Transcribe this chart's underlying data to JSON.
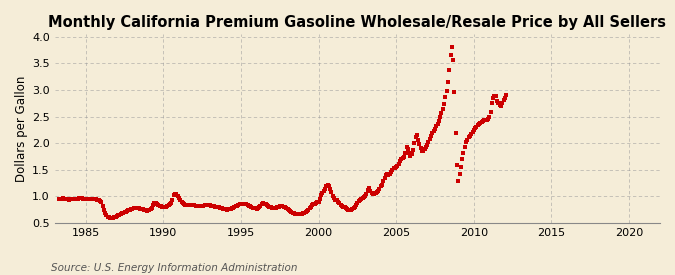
{
  "title": "Monthly California Premium Gasoline Wholesale/Resale Price by All Sellers",
  "ylabel": "Dollars per Gallon",
  "source": "Source: U.S. Energy Information Administration",
  "xlim": [
    1983.0,
    2022.0
  ],
  "ylim": [
    0.5,
    4.05
  ],
  "xticks": [
    1985,
    1990,
    1995,
    2000,
    2005,
    2010,
    2015,
    2020
  ],
  "yticks": [
    0.5,
    1.0,
    1.5,
    2.0,
    2.5,
    3.0,
    3.5,
    4.0
  ],
  "dot_color": "#cc0000",
  "background_color": "#f5edd8",
  "grid_color": "#999999",
  "title_fontsize": 10.5,
  "ylabel_fontsize": 8.5,
  "source_fontsize": 7.5,
  "data": [
    [
      1983.25,
      0.945
    ],
    [
      1983.33,
      0.95
    ],
    [
      1983.42,
      0.96
    ],
    [
      1983.5,
      0.965
    ],
    [
      1983.58,
      0.96
    ],
    [
      1983.67,
      0.955
    ],
    [
      1983.75,
      0.95
    ],
    [
      1983.83,
      0.945
    ],
    [
      1983.92,
      0.94
    ],
    [
      1984.0,
      0.945
    ],
    [
      1984.08,
      0.948
    ],
    [
      1984.17,
      0.952
    ],
    [
      1984.25,
      0.955
    ],
    [
      1984.33,
      0.96
    ],
    [
      1984.42,
      0.958
    ],
    [
      1984.5,
      0.955
    ],
    [
      1984.58,
      0.965
    ],
    [
      1984.67,
      0.968
    ],
    [
      1984.75,
      0.965
    ],
    [
      1984.83,
      0.96
    ],
    [
      1984.92,
      0.955
    ],
    [
      1985.0,
      0.95
    ],
    [
      1985.08,
      0.945
    ],
    [
      1985.17,
      0.948
    ],
    [
      1985.25,
      0.952
    ],
    [
      1985.33,
      0.955
    ],
    [
      1985.42,
      0.958
    ],
    [
      1985.5,
      0.96
    ],
    [
      1985.58,
      0.955
    ],
    [
      1985.67,
      0.948
    ],
    [
      1985.75,
      0.938
    ],
    [
      1985.83,
      0.925
    ],
    [
      1985.92,
      0.912
    ],
    [
      1986.0,
      0.895
    ],
    [
      1986.08,
      0.83
    ],
    [
      1986.17,
      0.748
    ],
    [
      1986.25,
      0.685
    ],
    [
      1986.33,
      0.648
    ],
    [
      1986.42,
      0.622
    ],
    [
      1986.5,
      0.608
    ],
    [
      1986.58,
      0.6
    ],
    [
      1986.67,
      0.598
    ],
    [
      1986.75,
      0.6
    ],
    [
      1986.83,
      0.608
    ],
    [
      1986.92,
      0.618
    ],
    [
      1987.0,
      0.632
    ],
    [
      1987.08,
      0.648
    ],
    [
      1987.17,
      0.66
    ],
    [
      1987.25,
      0.672
    ],
    [
      1987.33,
      0.682
    ],
    [
      1987.42,
      0.69
    ],
    [
      1987.5,
      0.7
    ],
    [
      1987.58,
      0.715
    ],
    [
      1987.67,
      0.728
    ],
    [
      1987.75,
      0.74
    ],
    [
      1987.83,
      0.752
    ],
    [
      1987.92,
      0.762
    ],
    [
      1988.0,
      0.772
    ],
    [
      1988.08,
      0.78
    ],
    [
      1988.17,
      0.785
    ],
    [
      1988.25,
      0.785
    ],
    [
      1988.33,
      0.782
    ],
    [
      1988.42,
      0.778
    ],
    [
      1988.5,
      0.772
    ],
    [
      1988.58,
      0.765
    ],
    [
      1988.67,
      0.758
    ],
    [
      1988.75,
      0.75
    ],
    [
      1988.83,
      0.742
    ],
    [
      1988.92,
      0.735
    ],
    [
      1989.0,
      0.738
    ],
    [
      1989.08,
      0.748
    ],
    [
      1989.17,
      0.762
    ],
    [
      1989.25,
      0.78
    ],
    [
      1989.33,
      0.842
    ],
    [
      1989.42,
      0.88
    ],
    [
      1989.5,
      0.875
    ],
    [
      1989.58,
      0.862
    ],
    [
      1989.67,
      0.845
    ],
    [
      1989.75,
      0.83
    ],
    [
      1989.83,
      0.818
    ],
    [
      1989.92,
      0.808
    ],
    [
      1990.0,
      0.8
    ],
    [
      1990.08,
      0.802
    ],
    [
      1990.17,
      0.808
    ],
    [
      1990.25,
      0.818
    ],
    [
      1990.33,
      0.832
    ],
    [
      1990.42,
      0.85
    ],
    [
      1990.5,
      0.875
    ],
    [
      1990.58,
      0.942
    ],
    [
      1990.67,
      1.025
    ],
    [
      1990.75,
      1.055
    ],
    [
      1990.83,
      1.038
    ],
    [
      1990.92,
      1.005
    ],
    [
      1991.0,
      0.968
    ],
    [
      1991.08,
      0.928
    ],
    [
      1991.17,
      0.898
    ],
    [
      1991.25,
      0.872
    ],
    [
      1991.33,
      0.855
    ],
    [
      1991.42,
      0.845
    ],
    [
      1991.5,
      0.842
    ],
    [
      1991.58,
      0.845
    ],
    [
      1991.67,
      0.848
    ],
    [
      1991.75,
      0.848
    ],
    [
      1991.83,
      0.845
    ],
    [
      1991.92,
      0.84
    ],
    [
      1992.0,
      0.835
    ],
    [
      1992.08,
      0.83
    ],
    [
      1992.17,
      0.825
    ],
    [
      1992.25,
      0.822
    ],
    [
      1992.33,
      0.82
    ],
    [
      1992.42,
      0.82
    ],
    [
      1992.5,
      0.822
    ],
    [
      1992.58,
      0.828
    ],
    [
      1992.67,
      0.835
    ],
    [
      1992.75,
      0.84
    ],
    [
      1992.83,
      0.842
    ],
    [
      1992.92,
      0.84
    ],
    [
      1993.0,
      0.835
    ],
    [
      1993.08,
      0.828
    ],
    [
      1993.17,
      0.82
    ],
    [
      1993.25,
      0.815
    ],
    [
      1993.33,
      0.81
    ],
    [
      1993.42,
      0.808
    ],
    [
      1993.5,
      0.805
    ],
    [
      1993.58,
      0.8
    ],
    [
      1993.67,
      0.792
    ],
    [
      1993.75,
      0.782
    ],
    [
      1993.83,
      0.772
    ],
    [
      1993.92,
      0.765
    ],
    [
      1994.0,
      0.758
    ],
    [
      1994.08,
      0.755
    ],
    [
      1994.17,
      0.758
    ],
    [
      1994.25,
      0.765
    ],
    [
      1994.33,
      0.772
    ],
    [
      1994.42,
      0.782
    ],
    [
      1994.5,
      0.792
    ],
    [
      1994.58,
      0.802
    ],
    [
      1994.67,
      0.815
    ],
    [
      1994.75,
      0.828
    ],
    [
      1994.83,
      0.84
    ],
    [
      1994.92,
      0.85
    ],
    [
      1995.0,
      0.858
    ],
    [
      1995.08,
      0.862
    ],
    [
      1995.17,
      0.862
    ],
    [
      1995.25,
      0.858
    ],
    [
      1995.33,
      0.85
    ],
    [
      1995.42,
      0.84
    ],
    [
      1995.5,
      0.828
    ],
    [
      1995.58,
      0.815
    ],
    [
      1995.67,
      0.802
    ],
    [
      1995.75,
      0.792
    ],
    [
      1995.83,
      0.782
    ],
    [
      1995.92,
      0.775
    ],
    [
      1996.0,
      0.772
    ],
    [
      1996.08,
      0.778
    ],
    [
      1996.17,
      0.798
    ],
    [
      1996.25,
      0.828
    ],
    [
      1996.33,
      0.862
    ],
    [
      1996.42,
      0.878
    ],
    [
      1996.5,
      0.868
    ],
    [
      1996.58,
      0.852
    ],
    [
      1996.67,
      0.835
    ],
    [
      1996.75,
      0.818
    ],
    [
      1996.83,
      0.805
    ],
    [
      1996.92,
      0.795
    ],
    [
      1997.0,
      0.788
    ],
    [
      1997.08,
      0.785
    ],
    [
      1997.17,
      0.785
    ],
    [
      1997.25,
      0.788
    ],
    [
      1997.33,
      0.795
    ],
    [
      1997.42,
      0.805
    ],
    [
      1997.5,
      0.815
    ],
    [
      1997.58,
      0.82
    ],
    [
      1997.67,
      0.818
    ],
    [
      1997.75,
      0.81
    ],
    [
      1997.83,
      0.798
    ],
    [
      1997.92,
      0.782
    ],
    [
      1998.0,
      0.762
    ],
    [
      1998.08,
      0.742
    ],
    [
      1998.17,
      0.722
    ],
    [
      1998.25,
      0.705
    ],
    [
      1998.33,
      0.692
    ],
    [
      1998.42,
      0.682
    ],
    [
      1998.5,
      0.675
    ],
    [
      1998.58,
      0.672
    ],
    [
      1998.67,
      0.672
    ],
    [
      1998.75,
      0.675
    ],
    [
      1998.83,
      0.678
    ],
    [
      1998.92,
      0.68
    ],
    [
      1999.0,
      0.682
    ],
    [
      1999.08,
      0.688
    ],
    [
      1999.17,
      0.705
    ],
    [
      1999.25,
      0.728
    ],
    [
      1999.33,
      0.755
    ],
    [
      1999.42,
      0.782
    ],
    [
      1999.5,
      0.808
    ],
    [
      1999.58,
      0.832
    ],
    [
      1999.67,
      0.852
    ],
    [
      1999.75,
      0.868
    ],
    [
      1999.83,
      0.88
    ],
    [
      1999.92,
      0.888
    ],
    [
      2000.0,
      0.905
    ],
    [
      2000.08,
      0.948
    ],
    [
      2000.17,
      1.025
    ],
    [
      2000.25,
      1.068
    ],
    [
      2000.33,
      1.095
    ],
    [
      2000.42,
      1.148
    ],
    [
      2000.5,
      1.188
    ],
    [
      2000.58,
      1.208
    ],
    [
      2000.67,
      1.188
    ],
    [
      2000.75,
      1.142
    ],
    [
      2000.83,
      1.082
    ],
    [
      2000.92,
      1.018
    ],
    [
      2001.0,
      0.968
    ],
    [
      2001.08,
      0.942
    ],
    [
      2001.17,
      0.928
    ],
    [
      2001.25,
      0.905
    ],
    [
      2001.33,
      0.875
    ],
    [
      2001.42,
      0.848
    ],
    [
      2001.5,
      0.825
    ],
    [
      2001.58,
      0.808
    ],
    [
      2001.67,
      0.795
    ],
    [
      2001.75,
      0.782
    ],
    [
      2001.83,
      0.768
    ],
    [
      2001.92,
      0.755
    ],
    [
      2002.0,
      0.748
    ],
    [
      2002.08,
      0.748
    ],
    [
      2002.17,
      0.758
    ],
    [
      2002.25,
      0.778
    ],
    [
      2002.33,
      0.808
    ],
    [
      2002.42,
      0.845
    ],
    [
      2002.5,
      0.885
    ],
    [
      2002.58,
      0.918
    ],
    [
      2002.67,
      0.942
    ],
    [
      2002.75,
      0.96
    ],
    [
      2002.83,
      0.975
    ],
    [
      2002.92,
      0.988
    ],
    [
      2003.0,
      1.005
    ],
    [
      2003.08,
      1.048
    ],
    [
      2003.17,
      1.125
    ],
    [
      2003.25,
      1.155
    ],
    [
      2003.33,
      1.108
    ],
    [
      2003.42,
      1.062
    ],
    [
      2003.5,
      1.042
    ],
    [
      2003.58,
      1.045
    ],
    [
      2003.67,
      1.058
    ],
    [
      2003.75,
      1.082
    ],
    [
      2003.83,
      1.112
    ],
    [
      2003.92,
      1.148
    ],
    [
      2004.0,
      1.188
    ],
    [
      2004.08,
      1.222
    ],
    [
      2004.17,
      1.295
    ],
    [
      2004.25,
      1.355
    ],
    [
      2004.33,
      1.405
    ],
    [
      2004.42,
      1.418
    ],
    [
      2004.5,
      1.408
    ],
    [
      2004.58,
      1.428
    ],
    [
      2004.67,
      1.462
    ],
    [
      2004.75,
      1.498
    ],
    [
      2004.83,
      1.528
    ],
    [
      2004.92,
      1.538
    ],
    [
      2005.0,
      1.548
    ],
    [
      2005.08,
      1.568
    ],
    [
      2005.17,
      1.618
    ],
    [
      2005.25,
      1.668
    ],
    [
      2005.33,
      1.712
    ],
    [
      2005.42,
      1.722
    ],
    [
      2005.5,
      1.748
    ],
    [
      2005.58,
      1.812
    ],
    [
      2005.67,
      1.938
    ],
    [
      2005.75,
      1.898
    ],
    [
      2005.83,
      1.808
    ],
    [
      2005.92,
      1.762
    ],
    [
      2006.0,
      1.788
    ],
    [
      2006.08,
      1.868
    ],
    [
      2006.17,
      2.005
    ],
    [
      2006.25,
      2.125
    ],
    [
      2006.33,
      2.148
    ],
    [
      2006.42,
      2.068
    ],
    [
      2006.5,
      1.988
    ],
    [
      2006.58,
      1.908
    ],
    [
      2006.67,
      1.862
    ],
    [
      2006.75,
      1.855
    ],
    [
      2006.83,
      1.882
    ],
    [
      2006.92,
      1.932
    ],
    [
      2007.0,
      1.975
    ],
    [
      2007.08,
      2.025
    ],
    [
      2007.17,
      2.082
    ],
    [
      2007.25,
      2.138
    ],
    [
      2007.33,
      2.188
    ],
    [
      2007.42,
      2.235
    ],
    [
      2007.5,
      2.275
    ],
    [
      2007.58,
      2.318
    ],
    [
      2007.67,
      2.368
    ],
    [
      2007.75,
      2.418
    ],
    [
      2007.83,
      2.488
    ],
    [
      2007.92,
      2.558
    ],
    [
      2008.0,
      2.638
    ],
    [
      2008.08,
      2.728
    ],
    [
      2008.17,
      2.858
    ],
    [
      2008.25,
      2.985
    ],
    [
      2008.33,
      3.155
    ],
    [
      2008.42,
      3.368
    ],
    [
      2008.5,
      3.648
    ],
    [
      2008.58,
      3.808
    ],
    [
      2008.67,
      3.568
    ],
    [
      2008.75,
      2.968
    ],
    [
      2008.83,
      2.188
    ],
    [
      2008.92,
      1.595
    ],
    [
      2009.0,
      1.298
    ],
    [
      2009.08,
      1.425
    ],
    [
      2009.17,
      1.558
    ],
    [
      2009.25,
      1.698
    ],
    [
      2009.33,
      1.818
    ],
    [
      2009.42,
      1.938
    ],
    [
      2009.5,
      2.018
    ],
    [
      2009.58,
      2.068
    ],
    [
      2009.67,
      2.108
    ],
    [
      2009.75,
      2.138
    ],
    [
      2009.83,
      2.178
    ],
    [
      2009.92,
      2.218
    ],
    [
      2010.0,
      2.248
    ],
    [
      2010.08,
      2.278
    ],
    [
      2010.17,
      2.308
    ],
    [
      2010.25,
      2.335
    ],
    [
      2010.33,
      2.358
    ],
    [
      2010.42,
      2.378
    ],
    [
      2010.5,
      2.398
    ],
    [
      2010.58,
      2.415
    ],
    [
      2010.67,
      2.428
    ],
    [
      2010.75,
      2.435
    ],
    [
      2010.83,
      2.442
    ],
    [
      2010.92,
      2.448
    ],
    [
      2011.0,
      2.488
    ],
    [
      2011.08,
      2.585
    ],
    [
      2011.17,
      2.758
    ],
    [
      2011.25,
      2.848
    ],
    [
      2011.33,
      2.892
    ],
    [
      2011.42,
      2.878
    ],
    [
      2011.5,
      2.798
    ],
    [
      2011.58,
      2.748
    ],
    [
      2011.67,
      2.718
    ],
    [
      2011.75,
      2.698
    ],
    [
      2011.83,
      2.748
    ],
    [
      2011.92,
      2.808
    ],
    [
      2012.0,
      2.848
    ],
    [
      2012.08,
      2.908
    ]
  ]
}
